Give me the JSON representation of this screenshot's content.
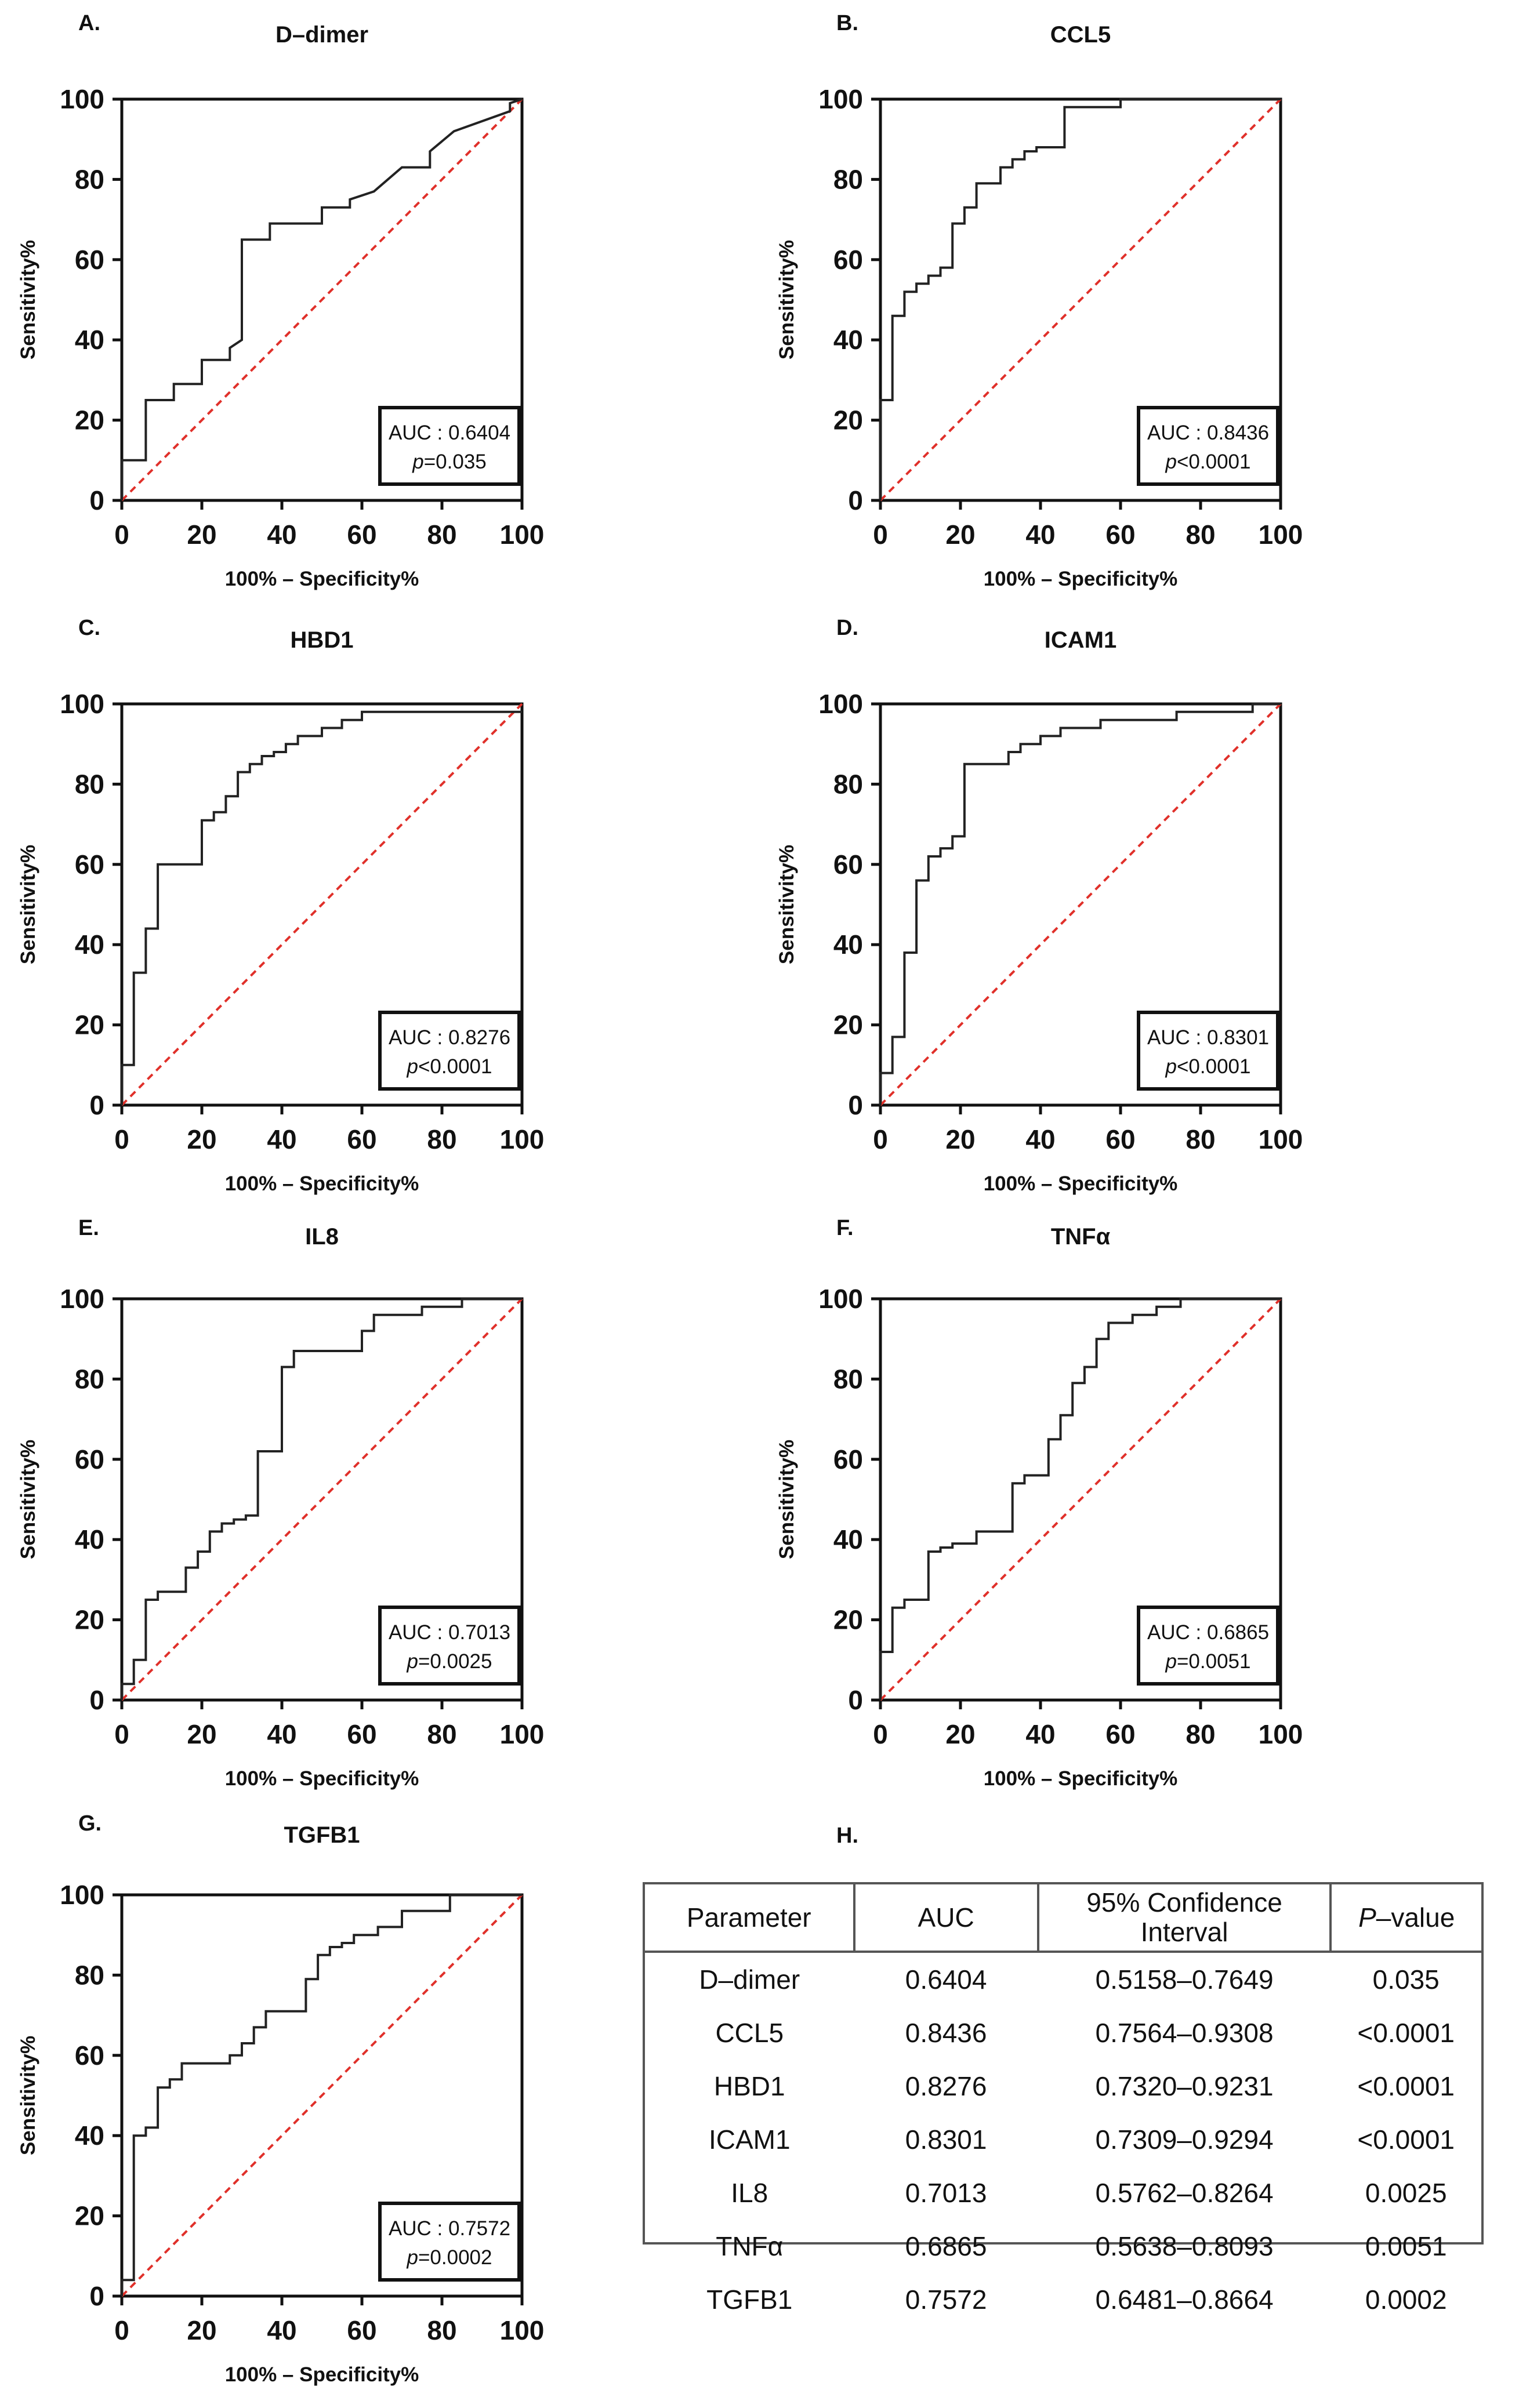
{
  "chart_data": [
    {
      "type": "line",
      "panel": "A.",
      "title": "D–dimer",
      "xlabel": "100% – Specificity%",
      "ylabel": "Sensitivity%",
      "xlim": [
        0,
        100
      ],
      "ylim": [
        0,
        100
      ],
      "xticks": [
        "0",
        "20",
        "40",
        "60",
        "80",
        "100"
      ],
      "yticks": [
        "0",
        "20",
        "40",
        "60",
        "80",
        "100"
      ],
      "auc_label": "AUC : 0.6404",
      "p_prefix": "p",
      "p_value": "=0.035",
      "roc": [
        [
          0,
          0
        ],
        [
          0,
          10
        ],
        [
          6,
          10
        ],
        [
          6,
          25
        ],
        [
          13,
          25
        ],
        [
          13,
          29
        ],
        [
          20,
          29
        ],
        [
          20,
          35
        ],
        [
          27,
          35
        ],
        [
          27,
          38
        ],
        [
          30,
          40
        ],
        [
          30,
          65
        ],
        [
          37,
          65
        ],
        [
          37,
          69
        ],
        [
          50,
          69
        ],
        [
          50,
          73
        ],
        [
          57,
          73
        ],
        [
          57,
          75
        ],
        [
          63,
          77
        ],
        [
          70,
          83
        ],
        [
          77,
          83
        ],
        [
          77,
          87
        ],
        [
          83,
          92
        ],
        [
          97,
          97
        ],
        [
          97,
          99
        ],
        [
          100,
          100
        ]
      ],
      "reference": [
        [
          0,
          0
        ],
        [
          100,
          100
        ]
      ]
    },
    {
      "type": "line",
      "panel": "B.",
      "title": "CCL5",
      "xlabel": "100% – Specificity%",
      "ylabel": "Sensitivity%",
      "xlim": [
        0,
        100
      ],
      "ylim": [
        0,
        100
      ],
      "xticks": [
        "0",
        "20",
        "40",
        "60",
        "80",
        "100"
      ],
      "yticks": [
        "0",
        "20",
        "40",
        "60",
        "80",
        "100"
      ],
      "auc_label": "AUC : 0.8436",
      "p_prefix": "p",
      "p_value": "<0.0001",
      "roc": [
        [
          0,
          0
        ],
        [
          0,
          25
        ],
        [
          3,
          25
        ],
        [
          3,
          46
        ],
        [
          6,
          46
        ],
        [
          6,
          52
        ],
        [
          9,
          52
        ],
        [
          9,
          54
        ],
        [
          12,
          54
        ],
        [
          12,
          56
        ],
        [
          15,
          56
        ],
        [
          15,
          58
        ],
        [
          18,
          58
        ],
        [
          18,
          69
        ],
        [
          21,
          69
        ],
        [
          21,
          73
        ],
        [
          24,
          73
        ],
        [
          24,
          79
        ],
        [
          30,
          79
        ],
        [
          30,
          83
        ],
        [
          33,
          83
        ],
        [
          33,
          85
        ],
        [
          36,
          85
        ],
        [
          36,
          87
        ],
        [
          39,
          87
        ],
        [
          39,
          88
        ],
        [
          46,
          88
        ],
        [
          46,
          98
        ],
        [
          60,
          98
        ],
        [
          60,
          100
        ],
        [
          100,
          100
        ]
      ],
      "reference": [
        [
          0,
          0
        ],
        [
          100,
          100
        ]
      ]
    },
    {
      "type": "line",
      "panel": "C.",
      "title": "HBD1",
      "xlabel": "100% – Specificity%",
      "ylabel": "Sensitivity%",
      "xlim": [
        0,
        100
      ],
      "ylim": [
        0,
        100
      ],
      "xticks": [
        "0",
        "20",
        "40",
        "60",
        "80",
        "100"
      ],
      "yticks": [
        "0",
        "20",
        "40",
        "60",
        "80",
        "100"
      ],
      "auc_label": "AUC : 0.8276",
      "p_prefix": "p",
      "p_value": "<0.0001",
      "roc": [
        [
          0,
          0
        ],
        [
          0,
          10
        ],
        [
          3,
          10
        ],
        [
          3,
          33
        ],
        [
          6,
          33
        ],
        [
          6,
          44
        ],
        [
          9,
          44
        ],
        [
          9,
          60
        ],
        [
          20,
          60
        ],
        [
          20,
          71
        ],
        [
          23,
          71
        ],
        [
          23,
          73
        ],
        [
          26,
          73
        ],
        [
          26,
          77
        ],
        [
          29,
          77
        ],
        [
          29,
          83
        ],
        [
          32,
          83
        ],
        [
          32,
          85
        ],
        [
          35,
          85
        ],
        [
          35,
          87
        ],
        [
          38,
          87
        ],
        [
          38,
          88
        ],
        [
          41,
          88
        ],
        [
          41,
          90
        ],
        [
          44,
          90
        ],
        [
          44,
          92
        ],
        [
          50,
          92
        ],
        [
          50,
          94
        ],
        [
          55,
          94
        ],
        [
          55,
          96
        ],
        [
          60,
          96
        ],
        [
          60,
          98
        ],
        [
          100,
          98
        ]
      ],
      "reference": [
        [
          0,
          0
        ],
        [
          100,
          100
        ]
      ]
    },
    {
      "type": "line",
      "panel": "D.",
      "title": "ICAM1",
      "xlabel": "100% – Specificity%",
      "ylabel": "Sensitivity%",
      "xlim": [
        0,
        100
      ],
      "ylim": [
        0,
        100
      ],
      "xticks": [
        "0",
        "20",
        "40",
        "60",
        "80",
        "100"
      ],
      "yticks": [
        "0",
        "20",
        "40",
        "60",
        "80",
        "100"
      ],
      "auc_label": "AUC : 0.8301",
      "p_prefix": "p",
      "p_value": "<0.0001",
      "roc": [
        [
          0,
          0
        ],
        [
          0,
          8
        ],
        [
          3,
          8
        ],
        [
          3,
          17
        ],
        [
          6,
          17
        ],
        [
          6,
          38
        ],
        [
          9,
          38
        ],
        [
          9,
          56
        ],
        [
          12,
          56
        ],
        [
          12,
          62
        ],
        [
          15,
          62
        ],
        [
          15,
          64
        ],
        [
          18,
          64
        ],
        [
          18,
          67
        ],
        [
          21,
          67
        ],
        [
          21,
          85
        ],
        [
          32,
          85
        ],
        [
          32,
          88
        ],
        [
          35,
          88
        ],
        [
          35,
          90
        ],
        [
          40,
          90
        ],
        [
          40,
          92
        ],
        [
          45,
          92
        ],
        [
          45,
          94
        ],
        [
          55,
          94
        ],
        [
          55,
          96
        ],
        [
          74,
          96
        ],
        [
          74,
          98
        ],
        [
          93,
          98
        ],
        [
          93,
          100
        ],
        [
          100,
          100
        ]
      ],
      "reference": [
        [
          0,
          0
        ],
        [
          100,
          100
        ]
      ]
    },
    {
      "type": "line",
      "panel": "E.",
      "title": "IL8",
      "xlabel": "100% – Specificity%",
      "ylabel": "Sensitivity%",
      "xlim": [
        0,
        100
      ],
      "ylim": [
        0,
        100
      ],
      "xticks": [
        "0",
        "20",
        "40",
        "60",
        "80",
        "100"
      ],
      "yticks": [
        "0",
        "20",
        "40",
        "60",
        "80",
        "100"
      ],
      "auc_label": "AUC : 0.7013",
      "p_prefix": "p",
      "p_value": "=0.0025",
      "roc": [
        [
          0,
          0
        ],
        [
          0,
          4
        ],
        [
          3,
          4
        ],
        [
          3,
          10
        ],
        [
          6,
          10
        ],
        [
          6,
          25
        ],
        [
          9,
          25
        ],
        [
          9,
          27
        ],
        [
          16,
          27
        ],
        [
          16,
          33
        ],
        [
          19,
          33
        ],
        [
          19,
          37
        ],
        [
          22,
          37
        ],
        [
          22,
          42
        ],
        [
          25,
          42
        ],
        [
          25,
          44
        ],
        [
          28,
          44
        ],
        [
          28,
          45
        ],
        [
          31,
          45
        ],
        [
          31,
          46
        ],
        [
          34,
          46
        ],
        [
          34,
          62
        ],
        [
          40,
          62
        ],
        [
          40,
          83
        ],
        [
          43,
          83
        ],
        [
          43,
          87
        ],
        [
          60,
          87
        ],
        [
          60,
          92
        ],
        [
          63,
          92
        ],
        [
          63,
          96
        ],
        [
          75,
          96
        ],
        [
          75,
          98
        ],
        [
          85,
          98
        ],
        [
          85,
          100
        ],
        [
          100,
          100
        ]
      ],
      "reference": [
        [
          0,
          0
        ],
        [
          100,
          100
        ]
      ]
    },
    {
      "type": "line",
      "panel": "F.",
      "title": "TNFα",
      "xlabel": "100% – Specificity%",
      "ylabel": "Sensitivity%",
      "xlim": [
        0,
        100
      ],
      "ylim": [
        0,
        100
      ],
      "xticks": [
        "0",
        "20",
        "40",
        "60",
        "80",
        "100"
      ],
      "yticks": [
        "0",
        "20",
        "40",
        "60",
        "80",
        "100"
      ],
      "auc_label": "AUC : 0.6865",
      "p_prefix": "p",
      "p_value": "=0.0051",
      "roc": [
        [
          0,
          0
        ],
        [
          0,
          12
        ],
        [
          3,
          12
        ],
        [
          3,
          23
        ],
        [
          6,
          23
        ],
        [
          6,
          25
        ],
        [
          12,
          25
        ],
        [
          12,
          37
        ],
        [
          15,
          37
        ],
        [
          15,
          38
        ],
        [
          18,
          38
        ],
        [
          18,
          39
        ],
        [
          24,
          39
        ],
        [
          24,
          42
        ],
        [
          33,
          42
        ],
        [
          33,
          54
        ],
        [
          36,
          54
        ],
        [
          36,
          56
        ],
        [
          42,
          56
        ],
        [
          42,
          65
        ],
        [
          45,
          65
        ],
        [
          45,
          71
        ],
        [
          48,
          71
        ],
        [
          48,
          79
        ],
        [
          51,
          79
        ],
        [
          51,
          83
        ],
        [
          54,
          83
        ],
        [
          54,
          90
        ],
        [
          57,
          90
        ],
        [
          57,
          94
        ],
        [
          63,
          94
        ],
        [
          63,
          96
        ],
        [
          69,
          96
        ],
        [
          69,
          98
        ],
        [
          75,
          98
        ],
        [
          75,
          100
        ],
        [
          100,
          100
        ]
      ],
      "reference": [
        [
          0,
          0
        ],
        [
          100,
          100
        ]
      ]
    },
    {
      "type": "line",
      "panel": "G.",
      "title": "TGFB1",
      "xlabel": "100% – Specificity%",
      "ylabel": "Sensitivity%",
      "xlim": [
        0,
        100
      ],
      "ylim": [
        0,
        100
      ],
      "xticks": [
        "0",
        "20",
        "40",
        "60",
        "80",
        "100"
      ],
      "yticks": [
        "0",
        "20",
        "40",
        "60",
        "80",
        "100"
      ],
      "auc_label": "AUC : 0.7572",
      "p_prefix": "p",
      "p_value": "=0.0002",
      "roc": [
        [
          0,
          0
        ],
        [
          0,
          4
        ],
        [
          3,
          4
        ],
        [
          3,
          40
        ],
        [
          6,
          40
        ],
        [
          6,
          42
        ],
        [
          9,
          42
        ],
        [
          9,
          52
        ],
        [
          12,
          52
        ],
        [
          12,
          54
        ],
        [
          15,
          54
        ],
        [
          15,
          58
        ],
        [
          27,
          58
        ],
        [
          27,
          60
        ],
        [
          30,
          60
        ],
        [
          30,
          63
        ],
        [
          33,
          63
        ],
        [
          33,
          67
        ],
        [
          36,
          67
        ],
        [
          36,
          71
        ],
        [
          46,
          71
        ],
        [
          46,
          79
        ],
        [
          49,
          79
        ],
        [
          49,
          85
        ],
        [
          52,
          85
        ],
        [
          52,
          87
        ],
        [
          55,
          87
        ],
        [
          55,
          88
        ],
        [
          58,
          88
        ],
        [
          58,
          90
        ],
        [
          64,
          90
        ],
        [
          64,
          92
        ],
        [
          70,
          92
        ],
        [
          70,
          96
        ],
        [
          82,
          96
        ],
        [
          82,
          100
        ],
        [
          100,
          100
        ]
      ],
      "reference": [
        [
          0,
          0
        ],
        [
          100,
          100
        ]
      ]
    }
  ],
  "table": {
    "panel": "H.",
    "headers": {
      "parameter": "Parameter",
      "auc": "AUC",
      "ci": "95% Confidence Interval",
      "p_letter": "P",
      "p_rest": "–value"
    },
    "rows": [
      {
        "parameter": "D–dimer",
        "auc": "0.6404",
        "ci": "0.5158–0.7649",
        "p": "0.035"
      },
      {
        "parameter": "CCL5",
        "auc": "0.8436",
        "ci": "0.7564–0.9308",
        "p": "<0.0001"
      },
      {
        "parameter": "HBD1",
        "auc": "0.8276",
        "ci": "0.7320–0.9231",
        "p": "<0.0001"
      },
      {
        "parameter": "ICAM1",
        "auc": "0.8301",
        "ci": "0.7309–0.9294",
        "p": "<0.0001"
      },
      {
        "parameter": "IL8",
        "auc": "0.7013",
        "ci": "0.5762–0.8264",
        "p": "0.0025"
      },
      {
        "parameter": "TNFα",
        "auc": "0.6865",
        "ci": "0.5638–0.8093",
        "p": "0.0051"
      },
      {
        "parameter": "TGFB1",
        "auc": "0.7572",
        "ci": "0.6481–0.8664",
        "p": "0.0002"
      }
    ]
  },
  "colors": {
    "roc_line": "#222222",
    "reference_line": "#e0302a",
    "axis": "#111111",
    "table_border": "#555555"
  }
}
